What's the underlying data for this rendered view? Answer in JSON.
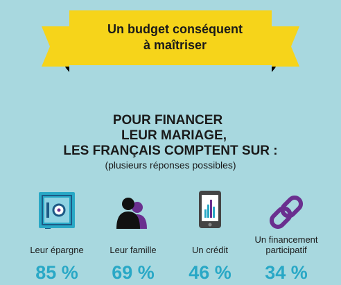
{
  "banner": {
    "line1": "Un budget conséquent",
    "line2": "à maîtriser"
  },
  "heading": {
    "line1": "POUR FINANCER",
    "line2": "LEUR MARIAGE,",
    "line3": "LES FRANÇAIS COMPTENT SUR :",
    "subtitle": "(plusieurs réponses possibles)"
  },
  "colors": {
    "background": "#a8d8df",
    "banner": "#f6d41a",
    "value": "#29a8c6",
    "purple": "#6a2f8f"
  },
  "chart_data": {
    "type": "table",
    "categories": [
      "Leur épargne",
      "Leur famille",
      "Un crédit",
      "Un financement participatif"
    ],
    "values": [
      85,
      69,
      46,
      34
    ],
    "value_labels": [
      "85 %",
      "69 %",
      "46 %",
      "34 %"
    ],
    "icons": [
      "safe-icon",
      "family-icon",
      "phone-chart-icon",
      "chain-link-icon"
    ]
  }
}
